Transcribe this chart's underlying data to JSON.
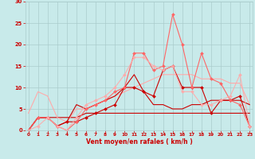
{
  "x": [
    0,
    1,
    2,
    3,
    4,
    5,
    6,
    7,
    8,
    9,
    10,
    11,
    12,
    13,
    14,
    15,
    16,
    17,
    18,
    19,
    20,
    21,
    22,
    23
  ],
  "lines": [
    {
      "y": [
        0,
        3,
        3,
        3,
        3,
        3,
        4,
        4,
        4,
        4,
        4,
        4,
        4,
        4,
        4,
        4,
        4,
        4,
        4,
        4,
        4,
        4,
        4,
        4
      ],
      "color": "#cc0000",
      "lw": 0.8,
      "marker": null,
      "alpha": 1.0
    },
    {
      "y": [
        4,
        9,
        8,
        3,
        2,
        5,
        5,
        6,
        7,
        8,
        9,
        10,
        11,
        12,
        13,
        13,
        13,
        13,
        12,
        12,
        12,
        11,
        11,
        6
      ],
      "color": "#ffaaaa",
      "lw": 0.8,
      "marker": null,
      "alpha": 1.0
    },
    {
      "y": [
        0,
        3,
        3,
        1,
        2,
        6,
        5,
        6,
        7,
        8,
        10,
        13,
        9,
        6,
        6,
        5,
        5,
        6,
        6,
        7,
        7,
        7,
        7,
        6
      ],
      "color": "#cc0000",
      "lw": 0.8,
      "marker": null,
      "alpha": 1.0
    },
    {
      "y": [
        0,
        3,
        3,
        1,
        2,
        2,
        3,
        4,
        5,
        6,
        10,
        10,
        9,
        8,
        14,
        15,
        10,
        10,
        10,
        4,
        7,
        7,
        8,
        1
      ],
      "color": "#cc0000",
      "lw": 0.8,
      "marker": "D",
      "markersize": 2.0,
      "alpha": 1.0
    },
    {
      "y": [
        0,
        3,
        3,
        1,
        0,
        2,
        5,
        6,
        7,
        9,
        10,
        18,
        18,
        14,
        15,
        27,
        20,
        10,
        18,
        12,
        11,
        7,
        6,
        1
      ],
      "color": "#ff6666",
      "lw": 0.8,
      "marker": "D",
      "markersize": 2.0,
      "alpha": 1.0
    },
    {
      "y": [
        0,
        1,
        3,
        1,
        0,
        3,
        6,
        7,
        8,
        10,
        13,
        17,
        17,
        15,
        14,
        15,
        9,
        9,
        6,
        6,
        7,
        8,
        13,
        1
      ],
      "color": "#ffaaaa",
      "lw": 0.8,
      "marker": "D",
      "markersize": 2.0,
      "alpha": 0.9
    }
  ],
  "xlim": [
    -0.3,
    23.3
  ],
  "ylim": [
    0,
    30
  ],
  "yticks": [
    0,
    5,
    10,
    15,
    20,
    25,
    30
  ],
  "xticks": [
    0,
    1,
    2,
    3,
    4,
    5,
    6,
    7,
    8,
    9,
    10,
    11,
    12,
    13,
    14,
    15,
    16,
    17,
    18,
    19,
    20,
    21,
    22,
    23
  ],
  "xlabel": "Vent moyen/en rafales ( km/h )",
  "background_color": "#c8eaea",
  "grid_color": "#aacccc",
  "tick_color": "#cc0000",
  "label_color": "#cc0000"
}
